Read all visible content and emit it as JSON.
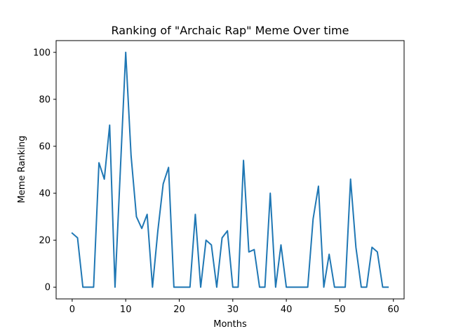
{
  "chart_data": {
    "type": "line",
    "title": "Ranking of \"Archaic Rap\" Meme Over time",
    "xlabel": "Months",
    "ylabel": "Meme Ranking",
    "xlim": [
      -3,
      62
    ],
    "ylim": [
      -5,
      105
    ],
    "xticks": [
      0,
      10,
      20,
      30,
      40,
      50,
      60
    ],
    "yticks": [
      0,
      20,
      40,
      60,
      80,
      100
    ],
    "grid": false,
    "series_color": "#1f77b4",
    "series": [
      {
        "x": [
          0,
          1,
          2,
          3,
          4,
          5,
          6,
          7,
          8,
          9,
          10,
          11,
          12,
          13,
          14,
          15,
          16,
          17,
          18,
          19,
          20,
          21,
          22,
          23,
          24,
          25,
          26,
          27,
          28,
          29,
          30,
          31,
          32,
          33,
          34,
          35,
          36,
          37,
          38,
          39,
          40,
          41,
          42,
          43,
          44,
          45,
          46,
          47,
          48,
          49,
          50,
          51,
          52,
          53,
          54,
          55,
          56,
          57,
          58,
          59
        ],
        "values": [
          23,
          21,
          0,
          0,
          0,
          53,
          46,
          69,
          0,
          50,
          100,
          56,
          30,
          25,
          31,
          0,
          24,
          44,
          51,
          0,
          0,
          0,
          0,
          31,
          0,
          20,
          18,
          0,
          21,
          24,
          0,
          0,
          54,
          15,
          16,
          0,
          0,
          40,
          0,
          18,
          0,
          0,
          0,
          0,
          0,
          29,
          43,
          0,
          14,
          0,
          0,
          0,
          46,
          17,
          0,
          0,
          17,
          15,
          0,
          0
        ]
      }
    ]
  }
}
